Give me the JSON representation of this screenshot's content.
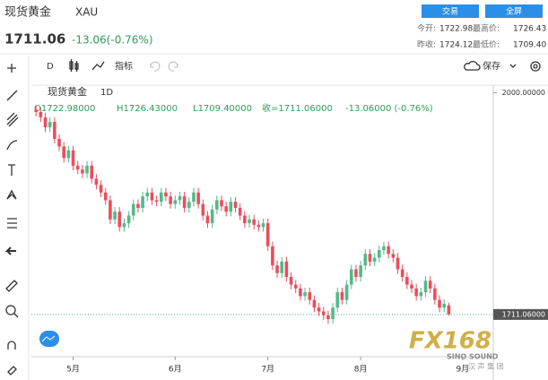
{
  "header": {
    "name": "现货黄金",
    "symbol": "XAU",
    "trade_button": "交易",
    "fullscreen_button": "全屏",
    "price": "1711.06",
    "change": "-13.06(-0.76%)",
    "stats": [
      {
        "label": "今开:",
        "value": "1722.98"
      },
      {
        "label": "最高价:",
        "value": "1726.43"
      },
      {
        "label": "昨收:",
        "value": "1724.12"
      },
      {
        "label": "最低价:",
        "value": "1709.40"
      }
    ]
  },
  "toolbar": {
    "interval": "D",
    "indicators": "指标",
    "save": "保存"
  },
  "watermark": {
    "brand": "FX168",
    "sub": "SINO SOUND",
    "cn": "汉 声 集 团"
  },
  "chart_data": {
    "type": "candlestick",
    "legend_name": "现货黄金",
    "interval": "1D",
    "ohlc_text": [
      "O1722.98000",
      "H1726.43000",
      "L1709.40000",
      "收=1711.06000",
      "-13.06000 (-0.76%)"
    ],
    "up_color": "#53b987",
    "down_color": "#eb4d5c",
    "series": [
      {
        "name": "XAU",
        "open": [
          1978,
          1975,
          1968,
          1955,
          1962,
          1940,
          1930,
          1915,
          1925,
          1905,
          1900,
          1895,
          1905,
          1888,
          1880,
          1870,
          1860,
          1835,
          1845,
          1825,
          1830,
          1840,
          1855,
          1850,
          1865,
          1870,
          1860,
          1858,
          1870,
          1865,
          1855,
          1860,
          1865,
          1850,
          1858,
          1870,
          1855,
          1840,
          1830,
          1848,
          1860,
          1852,
          1845,
          1858,
          1850,
          1840,
          1830,
          1835,
          1828,
          1825,
          1830,
          1800,
          1775,
          1765,
          1780,
          1760,
          1750,
          1745,
          1735,
          1740,
          1730,
          1720,
          1715,
          1710,
          1705,
          1720,
          1740,
          1730,
          1750,
          1770,
          1760,
          1775,
          1790,
          1780,
          1785,
          1795,
          1800,
          1790,
          1785,
          1770,
          1760,
          1750,
          1745,
          1735,
          1740,
          1755,
          1745,
          1730,
          1720,
          1722.98
        ],
        "high": [
          1984,
          1981,
          1974,
          1968,
          1968,
          1946,
          1936,
          1931,
          1931,
          1911,
          1906,
          1911,
          1911,
          1894,
          1886,
          1876,
          1866,
          1851,
          1851,
          1836,
          1846,
          1861,
          1861,
          1871,
          1876,
          1876,
          1866,
          1876,
          1876,
          1871,
          1866,
          1871,
          1871,
          1864,
          1876,
          1876,
          1861,
          1846,
          1854,
          1866,
          1866,
          1858,
          1864,
          1864,
          1856,
          1846,
          1841,
          1841,
          1834,
          1836,
          1836,
          1806,
          1781,
          1786,
          1786,
          1766,
          1756,
          1751,
          1746,
          1746,
          1736,
          1726,
          1721,
          1716,
          1726,
          1746,
          1746,
          1756,
          1776,
          1776,
          1781,
          1796,
          1796,
          1791,
          1801,
          1806,
          1806,
          1796,
          1791,
          1776,
          1766,
          1756,
          1751,
          1746,
          1761,
          1761,
          1751,
          1736,
          1731,
          1726.43
        ],
        "low": [
          1969,
          1962,
          1949,
          1949,
          1934,
          1924,
          1909,
          1909,
          1899,
          1894,
          1889,
          1889,
          1882,
          1874,
          1864,
          1854,
          1829,
          1829,
          1819,
          1819,
          1824,
          1834,
          1844,
          1844,
          1859,
          1854,
          1852,
          1852,
          1859,
          1849,
          1849,
          1854,
          1844,
          1844,
          1852,
          1849,
          1834,
          1824,
          1824,
          1842,
          1846,
          1839,
          1839,
          1844,
          1834,
          1824,
          1824,
          1822,
          1819,
          1819,
          1794,
          1769,
          1759,
          1759,
          1754,
          1744,
          1739,
          1729,
          1729,
          1724,
          1714,
          1709,
          1704,
          1699,
          1699,
          1714,
          1724,
          1724,
          1744,
          1754,
          1754,
          1769,
          1774,
          1774,
          1779,
          1789,
          1784,
          1779,
          1764,
          1754,
          1744,
          1739,
          1729,
          1729,
          1734,
          1739,
          1724,
          1714,
          1714,
          1709.4
        ],
        "close": [
          1975,
          1968,
          1955,
          1962,
          1940,
          1930,
          1915,
          1925,
          1905,
          1900,
          1895,
          1905,
          1888,
          1880,
          1870,
          1860,
          1835,
          1845,
          1825,
          1830,
          1840,
          1855,
          1850,
          1865,
          1870,
          1860,
          1858,
          1870,
          1865,
          1855,
          1860,
          1865,
          1850,
          1858,
          1870,
          1855,
          1840,
          1830,
          1848,
          1860,
          1852,
          1845,
          1858,
          1850,
          1840,
          1830,
          1835,
          1828,
          1825,
          1830,
          1800,
          1775,
          1765,
          1780,
          1760,
          1750,
          1745,
          1735,
          1740,
          1730,
          1720,
          1715,
          1710,
          1705,
          1720,
          1740,
          1730,
          1750,
          1770,
          1760,
          1775,
          1790,
          1780,
          1785,
          1795,
          1800,
          1790,
          1785,
          1770,
          1760,
          1750,
          1745,
          1735,
          1740,
          1755,
          1745,
          1730,
          1720,
          1725,
          1711.06
        ]
      }
    ],
    "ylim": [
      1656,
      2010
    ],
    "yticks": [
      {
        "value": 2000,
        "label": "2000.00000"
      }
    ],
    "last_price": {
      "value": 1711.06,
      "label": "1711.06000"
    },
    "xlim": [
      -1,
      98.6
    ],
    "xticks": [
      {
        "value": 8,
        "label": "5月"
      },
      {
        "value": 30,
        "label": "6月"
      },
      {
        "value": 50,
        "label": "7月"
      },
      {
        "value": 70,
        "label": "8月"
      },
      {
        "value": 92,
        "label": "9月"
      }
    ]
  }
}
